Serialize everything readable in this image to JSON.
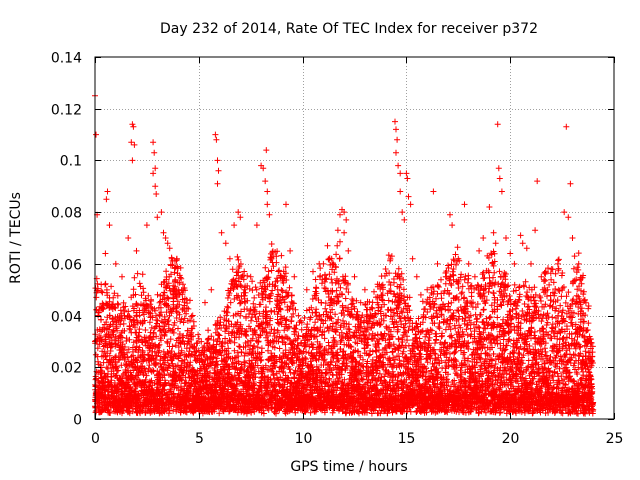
{
  "chart_data": {
    "type": "scatter",
    "title": "Day 232 of 2014, Rate Of TEC Index for receiver p372",
    "xlabel": "GPS time / hours",
    "ylabel": "ROTI / TECUs",
    "xlim": [
      0,
      25
    ],
    "ylim": [
      0,
      0.14
    ],
    "x_ticks": [
      0,
      5,
      10,
      15,
      20,
      25
    ],
    "x_tick_labels": [
      "0",
      "5",
      "10",
      "15",
      "20",
      "25"
    ],
    "y_ticks": [
      0,
      0.02,
      0.04,
      0.06,
      0.08,
      0.1,
      0.12,
      0.14
    ],
    "y_tick_labels": [
      "0",
      "0.02",
      "0.04",
      "0.06",
      "0.08",
      "0.1",
      "0.12",
      "0.14"
    ],
    "grid": true,
    "marker": "+",
    "colors": {
      "points": "#ff0000",
      "axes": "#000000",
      "grid": "#a0a0a0"
    },
    "series": [
      {
        "name": "p372",
        "points": [
          [
            0.0,
            0.125
          ],
          [
            0.05,
            0.11
          ],
          [
            0.1,
            0.079
          ],
          [
            0.15,
            0.018
          ],
          [
            0.3,
            0.052
          ],
          [
            0.5,
            0.064
          ],
          [
            0.55,
            0.085
          ],
          [
            0.6,
            0.088
          ],
          [
            0.7,
            0.075
          ],
          [
            1.0,
            0.06
          ],
          [
            1.3,
            0.055
          ],
          [
            1.6,
            0.07
          ],
          [
            1.8,
            0.114
          ],
          [
            1.85,
            0.113
          ],
          [
            1.75,
            0.107
          ],
          [
            1.9,
            0.106
          ],
          [
            1.8,
            0.1
          ],
          [
            2.0,
            0.065
          ],
          [
            2.3,
            0.056
          ],
          [
            2.5,
            0.075
          ],
          [
            2.8,
            0.107
          ],
          [
            2.85,
            0.103
          ],
          [
            2.9,
            0.097
          ],
          [
            2.8,
            0.095
          ],
          [
            2.9,
            0.09
          ],
          [
            2.95,
            0.087
          ],
          [
            3.0,
            0.078
          ],
          [
            3.2,
            0.08
          ],
          [
            3.3,
            0.072
          ],
          [
            3.4,
            0.07
          ],
          [
            3.5,
            0.068
          ],
          [
            3.6,
            0.066
          ],
          [
            3.7,
            0.062
          ],
          [
            3.8,
            0.05
          ],
          [
            4.0,
            0.035
          ],
          [
            4.5,
            0.03
          ],
          [
            4.7,
            0.028
          ],
          [
            5.0,
            0.031
          ],
          [
            5.3,
            0.045
          ],
          [
            5.6,
            0.05
          ],
          [
            5.8,
            0.11
          ],
          [
            5.85,
            0.108
          ],
          [
            5.9,
            0.1
          ],
          [
            5.95,
            0.096
          ],
          [
            5.9,
            0.091
          ],
          [
            6.1,
            0.072
          ],
          [
            6.3,
            0.068
          ],
          [
            6.5,
            0.062
          ],
          [
            6.7,
            0.075
          ],
          [
            6.9,
            0.08
          ],
          [
            7.0,
            0.078
          ],
          [
            7.2,
            0.05
          ],
          [
            7.5,
            0.055
          ],
          [
            7.8,
            0.075
          ],
          [
            8.0,
            0.098
          ],
          [
            8.1,
            0.097
          ],
          [
            8.2,
            0.092
          ],
          [
            8.25,
            0.104
          ],
          [
            8.3,
            0.088
          ],
          [
            8.3,
            0.083
          ],
          [
            8.4,
            0.079
          ],
          [
            8.5,
            0.062
          ],
          [
            8.8,
            0.05
          ],
          [
            9.0,
            0.045
          ],
          [
            9.2,
            0.083
          ],
          [
            9.4,
            0.065
          ],
          [
            9.6,
            0.055
          ],
          [
            9.8,
            0.04
          ],
          [
            10.2,
            0.05
          ],
          [
            10.5,
            0.057
          ],
          [
            10.8,
            0.06
          ],
          [
            11.0,
            0.06
          ],
          [
            11.2,
            0.067
          ],
          [
            11.4,
            0.062
          ],
          [
            11.7,
            0.073
          ],
          [
            11.8,
            0.079
          ],
          [
            11.9,
            0.081
          ],
          [
            12.0,
            0.08
          ],
          [
            12.1,
            0.077
          ],
          [
            12.0,
            0.072
          ],
          [
            12.2,
            0.065
          ],
          [
            12.5,
            0.055
          ],
          [
            12.8,
            0.045
          ],
          [
            13.0,
            0.05
          ],
          [
            13.3,
            0.04
          ],
          [
            13.6,
            0.045
          ],
          [
            14.0,
            0.058
          ],
          [
            14.3,
            0.063
          ],
          [
            14.45,
            0.115
          ],
          [
            14.5,
            0.112
          ],
          [
            14.55,
            0.108
          ],
          [
            14.5,
            0.103
          ],
          [
            14.6,
            0.098
          ],
          [
            14.7,
            0.095
          ],
          [
            14.7,
            0.088
          ],
          [
            14.8,
            0.08
          ],
          [
            14.9,
            0.077
          ],
          [
            15.0,
            0.095
          ],
          [
            15.05,
            0.093
          ],
          [
            15.1,
            0.086
          ],
          [
            15.2,
            0.083
          ],
          [
            15.3,
            0.062
          ],
          [
            15.5,
            0.055
          ],
          [
            15.7,
            0.048
          ],
          [
            16.0,
            0.05
          ],
          [
            16.3,
            0.088
          ],
          [
            16.5,
            0.06
          ],
          [
            16.9,
            0.055
          ],
          [
            17.1,
            0.079
          ],
          [
            17.2,
            0.075
          ],
          [
            17.5,
            0.062
          ],
          [
            17.8,
            0.083
          ],
          [
            18.0,
            0.06
          ],
          [
            18.3,
            0.055
          ],
          [
            18.5,
            0.065
          ],
          [
            18.7,
            0.07
          ],
          [
            19.0,
            0.082
          ],
          [
            19.2,
            0.072
          ],
          [
            19.3,
            0.068
          ],
          [
            19.4,
            0.114
          ],
          [
            19.45,
            0.097
          ],
          [
            19.5,
            0.093
          ],
          [
            19.6,
            0.088
          ],
          [
            19.8,
            0.07
          ],
          [
            20.0,
            0.064
          ],
          [
            20.2,
            0.06
          ],
          [
            20.5,
            0.071
          ],
          [
            20.6,
            0.068
          ],
          [
            20.8,
            0.066
          ],
          [
            21.0,
            0.06
          ],
          [
            21.2,
            0.073
          ],
          [
            21.3,
            0.092
          ],
          [
            21.5,
            0.055
          ],
          [
            21.8,
            0.05
          ],
          [
            22.0,
            0.058
          ],
          [
            22.3,
            0.06
          ],
          [
            22.6,
            0.08
          ],
          [
            22.7,
            0.113
          ],
          [
            22.8,
            0.078
          ],
          [
            22.9,
            0.091
          ],
          [
            23.0,
            0.07
          ],
          [
            23.1,
            0.063
          ],
          [
            23.3,
            0.06
          ],
          [
            23.5,
            0.04
          ],
          [
            23.7,
            0.03
          ]
        ]
      }
    ],
    "density": {
      "x_start": 0.0,
      "x_end": 23.9,
      "x_step": 0.2,
      "ceiling": [
        0.05,
        0.045,
        0.05,
        0.048,
        0.045,
        0.042,
        0.04,
        0.04,
        0.042,
        0.05,
        0.052,
        0.05,
        0.048,
        0.045,
        0.04,
        0.045,
        0.05,
        0.055,
        0.06,
        0.062,
        0.058,
        0.052,
        0.045,
        0.035,
        0.03,
        0.025,
        0.028,
        0.03,
        0.032,
        0.035,
        0.04,
        0.045,
        0.05,
        0.055,
        0.06,
        0.058,
        0.055,
        0.05,
        0.048,
        0.05,
        0.055,
        0.06,
        0.065,
        0.062,
        0.06,
        0.055,
        0.05,
        0.045,
        0.04,
        0.035,
        0.035,
        0.04,
        0.045,
        0.05,
        0.055,
        0.058,
        0.06,
        0.062,
        0.065,
        0.06,
        0.055,
        0.05,
        0.045,
        0.04,
        0.038,
        0.04,
        0.042,
        0.045,
        0.05,
        0.055,
        0.06,
        0.06,
        0.058,
        0.055,
        0.05,
        0.045,
        0.04,
        0.038,
        0.04,
        0.042,
        0.045,
        0.048,
        0.05,
        0.052,
        0.055,
        0.058,
        0.06,
        0.062,
        0.058,
        0.055,
        0.05,
        0.045,
        0.05,
        0.055,
        0.06,
        0.062,
        0.06,
        0.058,
        0.055,
        0.05,
        0.045,
        0.048,
        0.05,
        0.052,
        0.05,
        0.048,
        0.045,
        0.05,
        0.055,
        0.058,
        0.06,
        0.058,
        0.055,
        0.05,
        0.045,
        0.055,
        0.06,
        0.055,
        0.04,
        0.03
      ],
      "floor": 0.002,
      "per_bin": 70
    }
  }
}
